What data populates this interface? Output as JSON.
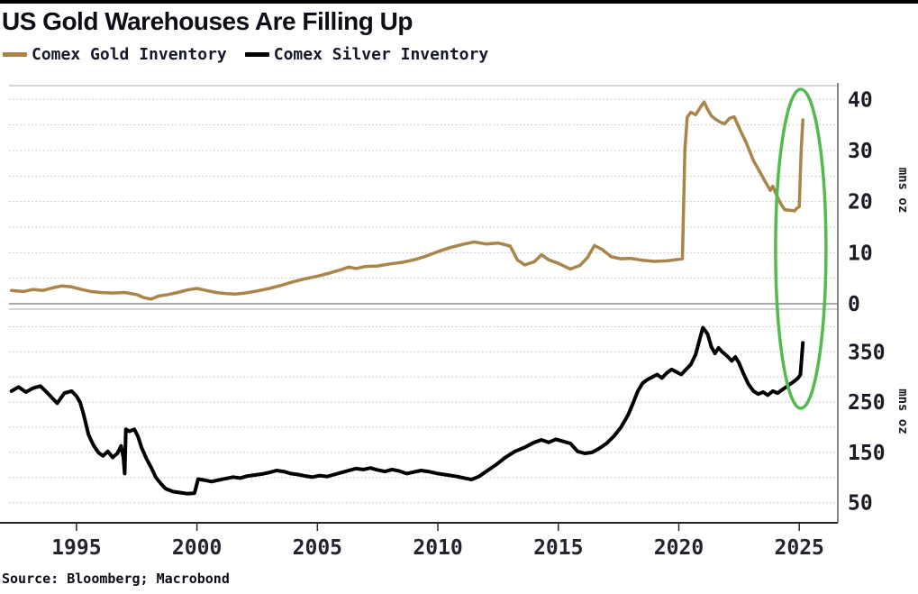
{
  "header": {
    "title": "US Gold Warehouses Are Filling Up"
  },
  "source_line": "Source: Bloomberg; Macrobond",
  "chart_data": {
    "type": "line",
    "title": "US Gold Warehouses Are Filling Up",
    "legend_position": "top-left",
    "grid": "dotted horizontal",
    "x_domain": [
      1992.2,
      2026.6
    ],
    "xticks": [
      "1995",
      "2000",
      "2005",
      "2010",
      "2015",
      "2020",
      "2025"
    ],
    "annotation": {
      "shape": "ellipse",
      "color": "#53ba4d",
      "meaning": "highlights early-2025 vertical spike in both Comex gold and silver inventories",
      "center_year": 2025.1
    },
    "panels": [
      {
        "name": "gold",
        "series_name": "Comex Gold Inventory",
        "color": "#a9854a",
        "unit_label": "mns oz",
        "ylim": [
          0,
          42.7
        ],
        "yticks": [
          0,
          10,
          20,
          30,
          40
        ],
        "grid_step": 5,
        "points": [
          [
            1992.3,
            2.6
          ],
          [
            1992.8,
            2.4
          ],
          [
            1993.2,
            2.8
          ],
          [
            1993.6,
            2.6
          ],
          [
            1994.0,
            3.1
          ],
          [
            1994.4,
            3.5
          ],
          [
            1994.8,
            3.3
          ],
          [
            1995.2,
            2.8
          ],
          [
            1995.6,
            2.4
          ],
          [
            1996.0,
            2.2
          ],
          [
            1996.5,
            2.1
          ],
          [
            1997.0,
            2.2
          ],
          [
            1997.5,
            1.8
          ],
          [
            1997.8,
            1.2
          ],
          [
            1998.1,
            0.9
          ],
          [
            1998.4,
            1.5
          ],
          [
            1998.8,
            1.8
          ],
          [
            1999.2,
            2.2
          ],
          [
            1999.6,
            2.7
          ],
          [
            2000.0,
            3.0
          ],
          [
            2000.4,
            2.6
          ],
          [
            2000.8,
            2.2
          ],
          [
            2001.2,
            2.0
          ],
          [
            2001.6,
            1.9
          ],
          [
            2002.0,
            2.1
          ],
          [
            2002.5,
            2.5
          ],
          [
            2003.0,
            3.0
          ],
          [
            2003.5,
            3.6
          ],
          [
            2004.0,
            4.3
          ],
          [
            2004.5,
            4.9
          ],
          [
            2005.0,
            5.4
          ],
          [
            2005.5,
            6.0
          ],
          [
            2006.0,
            6.7
          ],
          [
            2006.3,
            7.2
          ],
          [
            2006.6,
            6.9
          ],
          [
            2007.0,
            7.3
          ],
          [
            2007.5,
            7.4
          ],
          [
            2008.0,
            7.8
          ],
          [
            2008.5,
            8.1
          ],
          [
            2009.0,
            8.6
          ],
          [
            2009.5,
            9.3
          ],
          [
            2010.0,
            10.2
          ],
          [
            2010.5,
            11.0
          ],
          [
            2011.0,
            11.6
          ],
          [
            2011.5,
            12.1
          ],
          [
            2012.0,
            11.7
          ],
          [
            2012.5,
            11.9
          ],
          [
            2013.0,
            11.3
          ],
          [
            2013.3,
            8.6
          ],
          [
            2013.6,
            7.6
          ],
          [
            2014.0,
            8.2
          ],
          [
            2014.3,
            9.6
          ],
          [
            2014.6,
            8.6
          ],
          [
            2015.0,
            7.9
          ],
          [
            2015.5,
            6.8
          ],
          [
            2015.9,
            7.5
          ],
          [
            2016.2,
            9.0
          ],
          [
            2016.5,
            11.4
          ],
          [
            2016.8,
            10.7
          ],
          [
            2017.2,
            9.2
          ],
          [
            2017.6,
            8.8
          ],
          [
            2018.0,
            8.9
          ],
          [
            2018.5,
            8.5
          ],
          [
            2019.0,
            8.3
          ],
          [
            2019.5,
            8.4
          ],
          [
            2020.0,
            8.7
          ],
          [
            2020.15,
            8.8
          ],
          [
            2020.25,
            30.0
          ],
          [
            2020.35,
            36.5
          ],
          [
            2020.5,
            37.5
          ],
          [
            2020.7,
            37.0
          ],
          [
            2020.9,
            38.5
          ],
          [
            2021.05,
            39.5
          ],
          [
            2021.2,
            38.0
          ],
          [
            2021.35,
            36.8
          ],
          [
            2021.5,
            36.2
          ],
          [
            2021.7,
            35.6
          ],
          [
            2021.9,
            35.2
          ],
          [
            2022.1,
            36.3
          ],
          [
            2022.3,
            36.6
          ],
          [
            2022.5,
            34.5
          ],
          [
            2022.8,
            31.5
          ],
          [
            2023.1,
            28.0
          ],
          [
            2023.4,
            25.5
          ],
          [
            2023.6,
            23.8
          ],
          [
            2023.8,
            22.2
          ],
          [
            2023.9,
            23.0
          ],
          [
            2024.1,
            20.8
          ],
          [
            2024.25,
            19.4
          ],
          [
            2024.4,
            18.4
          ],
          [
            2024.6,
            18.3
          ],
          [
            2024.8,
            18.2
          ],
          [
            2024.9,
            18.7
          ],
          [
            2025.0,
            19.0
          ],
          [
            2025.08,
            30.0
          ],
          [
            2025.15,
            36.0
          ]
        ]
      },
      {
        "name": "silver",
        "series_name": "Comex Silver Inventory",
        "color": "#000000",
        "unit_label": "mns oz",
        "ylim": [
          10,
          435
        ],
        "yticks": [
          50,
          150,
          250,
          350
        ],
        "grid_step": 50,
        "points": [
          [
            1992.3,
            272
          ],
          [
            1992.6,
            280
          ],
          [
            1992.9,
            270
          ],
          [
            1993.2,
            278
          ],
          [
            1993.5,
            282
          ],
          [
            1993.8,
            268
          ],
          [
            1994.0,
            258
          ],
          [
            1994.2,
            248
          ],
          [
            1994.5,
            268
          ],
          [
            1994.8,
            272
          ],
          [
            1995.0,
            262
          ],
          [
            1995.15,
            250
          ],
          [
            1995.3,
            225
          ],
          [
            1995.5,
            185
          ],
          [
            1995.7,
            165
          ],
          [
            1995.9,
            150
          ],
          [
            1996.1,
            143
          ],
          [
            1996.3,
            152
          ],
          [
            1996.5,
            140
          ],
          [
            1996.7,
            148
          ],
          [
            1996.85,
            163
          ],
          [
            1996.95,
            140
          ],
          [
            1997.0,
            108
          ],
          [
            1997.05,
            196
          ],
          [
            1997.2,
            192
          ],
          [
            1997.4,
            196
          ],
          [
            1997.55,
            182
          ],
          [
            1997.7,
            160
          ],
          [
            1997.9,
            138
          ],
          [
            1998.1,
            120
          ],
          [
            1998.3,
            100
          ],
          [
            1998.5,
            88
          ],
          [
            1998.7,
            78
          ],
          [
            1999.0,
            72
          ],
          [
            1999.3,
            70
          ],
          [
            1999.6,
            68
          ],
          [
            1999.9,
            69
          ],
          [
            2000.05,
            97
          ],
          [
            2000.3,
            95
          ],
          [
            2000.6,
            92
          ],
          [
            2000.9,
            95
          ],
          [
            2001.2,
            98
          ],
          [
            2001.5,
            101
          ],
          [
            2001.8,
            99
          ],
          [
            2002.1,
            103
          ],
          [
            2002.4,
            105
          ],
          [
            2002.7,
            107
          ],
          [
            2003.0,
            110
          ],
          [
            2003.3,
            114
          ],
          [
            2003.6,
            112
          ],
          [
            2003.9,
            108
          ],
          [
            2004.2,
            106
          ],
          [
            2004.5,
            103
          ],
          [
            2004.8,
            101
          ],
          [
            2005.1,
            104
          ],
          [
            2005.4,
            102
          ],
          [
            2005.7,
            106
          ],
          [
            2006.0,
            110
          ],
          [
            2006.3,
            114
          ],
          [
            2006.6,
            118
          ],
          [
            2006.9,
            116
          ],
          [
            2007.2,
            119
          ],
          [
            2007.5,
            115
          ],
          [
            2007.8,
            112
          ],
          [
            2008.1,
            116
          ],
          [
            2008.4,
            113
          ],
          [
            2008.7,
            108
          ],
          [
            2009.0,
            111
          ],
          [
            2009.3,
            114
          ],
          [
            2009.6,
            112
          ],
          [
            2010.0,
            108
          ],
          [
            2010.4,
            105
          ],
          [
            2010.8,
            102
          ],
          [
            2011.1,
            99
          ],
          [
            2011.4,
            96
          ],
          [
            2011.7,
            102
          ],
          [
            2012.0,
            112
          ],
          [
            2012.4,
            125
          ],
          [
            2012.8,
            140
          ],
          [
            2013.2,
            152
          ],
          [
            2013.6,
            160
          ],
          [
            2014.0,
            170
          ],
          [
            2014.3,
            175
          ],
          [
            2014.6,
            170
          ],
          [
            2014.9,
            176
          ],
          [
            2015.2,
            172
          ],
          [
            2015.5,
            168
          ],
          [
            2015.8,
            152
          ],
          [
            2016.1,
            148
          ],
          [
            2016.4,
            150
          ],
          [
            2016.7,
            158
          ],
          [
            2017.0,
            168
          ],
          [
            2017.3,
            182
          ],
          [
            2017.6,
            200
          ],
          [
            2017.9,
            225
          ],
          [
            2018.1,
            248
          ],
          [
            2018.3,
            272
          ],
          [
            2018.5,
            288
          ],
          [
            2018.7,
            295
          ],
          [
            2018.9,
            300
          ],
          [
            2019.1,
            305
          ],
          [
            2019.3,
            298
          ],
          [
            2019.5,
            308
          ],
          [
            2019.7,
            315
          ],
          [
            2019.9,
            310
          ],
          [
            2020.1,
            305
          ],
          [
            2020.3,
            315
          ],
          [
            2020.5,
            325
          ],
          [
            2020.7,
            345
          ],
          [
            2020.85,
            372
          ],
          [
            2021.0,
            398
          ],
          [
            2021.1,
            392
          ],
          [
            2021.2,
            385
          ],
          [
            2021.35,
            360
          ],
          [
            2021.5,
            347
          ],
          [
            2021.65,
            358
          ],
          [
            2021.8,
            350
          ],
          [
            2022.0,
            342
          ],
          [
            2022.2,
            332
          ],
          [
            2022.35,
            340
          ],
          [
            2022.5,
            328
          ],
          [
            2022.7,
            305
          ],
          [
            2022.9,
            285
          ],
          [
            2023.1,
            272
          ],
          [
            2023.3,
            266
          ],
          [
            2023.5,
            270
          ],
          [
            2023.7,
            264
          ],
          [
            2023.9,
            272
          ],
          [
            2024.1,
            268
          ],
          [
            2024.3,
            275
          ],
          [
            2024.6,
            285
          ],
          [
            2024.8,
            292
          ],
          [
            2024.95,
            298
          ],
          [
            2025.05,
            305
          ],
          [
            2025.15,
            368
          ]
        ]
      }
    ]
  }
}
